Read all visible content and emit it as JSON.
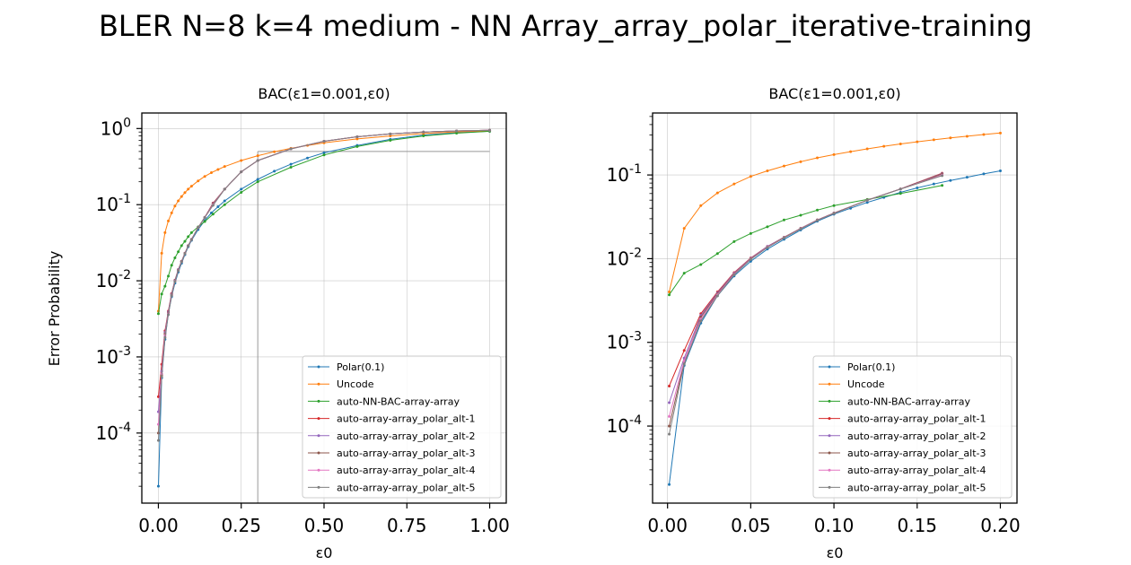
{
  "figure": {
    "title": "BLER N=8 k=4 medium - NN Array_array_polar_iterative-training"
  },
  "colors": {
    "Polar(0.1)": "#1f77b4",
    "Uncode": "#ff7f0e",
    "auto-NN-BAC-array-array": "#2ca02c",
    "auto-array-array_polar_alt-1": "#d62728",
    "auto-array-array_polar_alt-2": "#9467bd",
    "auto-array-array_polar_alt-3": "#8c564b",
    "auto-array-array_polar_alt-4": "#e377c2",
    "auto-array-array_polar_alt-5": "#7f7f7f"
  },
  "chart_data": [
    {
      "type": "line",
      "title": "BAC(ε1=0.001,ε0)",
      "xlabel": "ε0",
      "ylabel": "Error Probability",
      "yscale": "log",
      "xlim": [
        -0.05,
        1.05
      ],
      "ylim": [
        1.2e-05,
        1.6
      ],
      "xticks": [
        "0.00",
        "0.25",
        "0.50",
        "0.75",
        "1.00"
      ],
      "yticks": [
        "10^0",
        "10^-1",
        "10^-2",
        "10^-3",
        "10^-4"
      ],
      "grid": true,
      "legend_position": "lower-right",
      "reference_lines": {
        "vertical_x": 0.3,
        "horizontal_y": 0.5
      },
      "series": [
        {
          "name": "Polar(0.1)",
          "x": [
            0,
            0.01,
            0.02,
            0.03,
            0.04,
            0.05,
            0.06,
            0.07,
            0.08,
            0.09,
            0.1,
            0.12,
            0.14,
            0.16,
            0.18,
            0.2,
            0.25,
            0.3,
            0.35,
            0.4,
            0.45,
            0.5,
            0.6,
            0.7,
            0.8,
            0.9,
            1.0
          ],
          "y": [
            2e-05,
            0.00053,
            0.0017,
            0.0036,
            0.0062,
            0.0093,
            0.013,
            0.017,
            0.022,
            0.028,
            0.034,
            0.047,
            0.062,
            0.078,
            0.094,
            0.112,
            0.16,
            0.215,
            0.275,
            0.34,
            0.41,
            0.48,
            0.6,
            0.72,
            0.82,
            0.88,
            0.92
          ]
        },
        {
          "name": "Uncode",
          "x": [
            0,
            0.01,
            0.02,
            0.03,
            0.04,
            0.05,
            0.06,
            0.07,
            0.08,
            0.09,
            0.1,
            0.12,
            0.14,
            0.16,
            0.18,
            0.2,
            0.25,
            0.3,
            0.35,
            0.4,
            0.45,
            0.5,
            0.6,
            0.7,
            0.8,
            0.9,
            1.0
          ],
          "y": [
            0.004,
            0.023,
            0.043,
            0.061,
            0.078,
            0.096,
            0.112,
            0.128,
            0.144,
            0.16,
            0.175,
            0.205,
            0.235,
            0.263,
            0.29,
            0.317,
            0.38,
            0.44,
            0.495,
            0.55,
            0.6,
            0.65,
            0.73,
            0.8,
            0.86,
            0.905,
            0.93
          ]
        },
        {
          "name": "auto-NN-BAC-array-array",
          "x": [
            0,
            0.01,
            0.02,
            0.03,
            0.04,
            0.05,
            0.06,
            0.07,
            0.08,
            0.09,
            0.1,
            0.12,
            0.14,
            0.165,
            0.2,
            0.25,
            0.3,
            0.4,
            0.5,
            0.6,
            0.7,
            0.8,
            0.9,
            1.0
          ],
          "y": [
            0.0037,
            0.0067,
            0.0085,
            0.0115,
            0.016,
            0.02,
            0.024,
            0.029,
            0.033,
            0.038,
            0.043,
            0.051,
            0.06,
            0.075,
            0.1,
            0.145,
            0.2,
            0.31,
            0.45,
            0.58,
            0.7,
            0.8,
            0.87,
            0.92
          ]
        },
        {
          "name": "auto-array-array_polar_alt-1",
          "x": [
            0,
            0.01,
            0.02,
            0.03,
            0.04,
            0.05,
            0.06,
            0.07,
            0.08,
            0.09,
            0.1,
            0.12,
            0.14,
            0.165,
            0.2,
            0.25,
            0.3,
            0.4,
            0.5,
            0.6,
            0.7,
            0.8,
            0.9,
            1.0
          ],
          "y": [
            0.0003,
            0.0008,
            0.0022,
            0.004,
            0.0068,
            0.0102,
            0.014,
            0.018,
            0.023,
            0.029,
            0.035,
            0.05,
            0.068,
            0.105,
            0.16,
            0.27,
            0.38,
            0.54,
            0.68,
            0.78,
            0.85,
            0.9,
            0.93,
            0.95
          ]
        },
        {
          "name": "auto-array-array_polar_alt-2",
          "x": [
            0,
            0.01,
            0.02,
            0.03,
            0.04,
            0.05,
            0.06,
            0.07,
            0.08,
            0.09,
            0.1,
            0.12,
            0.14,
            0.165,
            0.2,
            0.25,
            0.3,
            0.4,
            0.5,
            0.6,
            0.7,
            0.8,
            0.9,
            1.0
          ],
          "y": [
            0.00019,
            0.00065,
            0.0021,
            0.0039,
            0.0067,
            0.0101,
            0.014,
            0.018,
            0.023,
            0.029,
            0.035,
            0.05,
            0.068,
            0.104,
            0.16,
            0.27,
            0.38,
            0.54,
            0.68,
            0.78,
            0.85,
            0.9,
            0.93,
            0.95
          ]
        },
        {
          "name": "auto-array-array_polar_alt-3",
          "x": [
            0,
            0.01,
            0.02,
            0.03,
            0.04,
            0.05,
            0.06,
            0.07,
            0.08,
            0.09,
            0.1,
            0.12,
            0.14,
            0.165,
            0.2,
            0.25,
            0.3,
            0.4,
            0.5,
            0.6,
            0.7,
            0.8,
            0.9,
            1.0
          ],
          "y": [
            0.0001,
            0.00058,
            0.002,
            0.0038,
            0.0066,
            0.01,
            0.0138,
            0.018,
            0.023,
            0.029,
            0.035,
            0.05,
            0.068,
            0.103,
            0.16,
            0.27,
            0.38,
            0.54,
            0.68,
            0.78,
            0.85,
            0.9,
            0.93,
            0.95
          ]
        },
        {
          "name": "auto-array-array_polar_alt-4",
          "x": [
            0,
            0.01,
            0.02,
            0.03,
            0.04,
            0.05,
            0.06,
            0.07,
            0.08,
            0.09,
            0.1,
            0.12,
            0.14,
            0.165,
            0.2,
            0.25,
            0.3,
            0.4,
            0.5,
            0.6,
            0.7,
            0.8,
            0.9,
            1.0
          ],
          "y": [
            0.00013,
            0.0006,
            0.0019,
            0.0037,
            0.0065,
            0.0099,
            0.0137,
            0.0178,
            0.0228,
            0.0288,
            0.0348,
            0.0498,
            0.0678,
            0.1,
            0.16,
            0.27,
            0.38,
            0.54,
            0.68,
            0.78,
            0.85,
            0.9,
            0.93,
            0.95
          ]
        },
        {
          "name": "auto-array-array_polar_alt-5",
          "x": [
            0,
            0.01,
            0.02,
            0.03,
            0.04,
            0.05,
            0.06,
            0.07,
            0.08,
            0.09,
            0.1,
            0.12,
            0.14,
            0.165,
            0.2,
            0.25,
            0.3,
            0.4,
            0.5,
            0.6,
            0.7,
            0.8,
            0.9,
            1.0
          ],
          "y": [
            8e-05,
            0.00055,
            0.0018,
            0.0036,
            0.0064,
            0.0098,
            0.0136,
            0.0177,
            0.0227,
            0.0287,
            0.0347,
            0.0497,
            0.0677,
            0.098,
            0.16,
            0.27,
            0.38,
            0.54,
            0.68,
            0.78,
            0.85,
            0.9,
            0.93,
            0.95
          ]
        }
      ]
    },
    {
      "type": "line",
      "title": "BAC(ε1=0.001,ε0)",
      "xlabel": "ε0",
      "ylabel": "",
      "yscale": "log",
      "xlim": [
        -0.009,
        0.21
      ],
      "ylim": [
        1.2e-05,
        0.55
      ],
      "xticks": [
        "0.00",
        "0.05",
        "0.10",
        "0.15",
        "0.20"
      ],
      "yticks": [
        "10^-1",
        "10^-2",
        "10^-3",
        "10^-4"
      ],
      "grid": true,
      "legend_position": "lower-right",
      "series": [
        {
          "name": "Polar(0.1)",
          "x": [
            0.001,
            0.01,
            0.02,
            0.03,
            0.04,
            0.05,
            0.06,
            0.07,
            0.08,
            0.09,
            0.1,
            0.11,
            0.12,
            0.13,
            0.14,
            0.15,
            0.16,
            0.17,
            0.18,
            0.19,
            0.2
          ],
          "y": [
            2e-05,
            0.00053,
            0.0017,
            0.0036,
            0.0062,
            0.0093,
            0.013,
            0.017,
            0.022,
            0.028,
            0.034,
            0.04,
            0.047,
            0.054,
            0.062,
            0.07,
            0.078,
            0.086,
            0.094,
            0.103,
            0.112
          ]
        },
        {
          "name": "Uncode",
          "x": [
            0.001,
            0.01,
            0.02,
            0.03,
            0.04,
            0.05,
            0.06,
            0.07,
            0.08,
            0.09,
            0.1,
            0.11,
            0.12,
            0.13,
            0.14,
            0.15,
            0.16,
            0.17,
            0.18,
            0.19,
            0.2
          ],
          "y": [
            0.004,
            0.023,
            0.043,
            0.061,
            0.078,
            0.096,
            0.112,
            0.128,
            0.144,
            0.16,
            0.175,
            0.19,
            0.205,
            0.22,
            0.235,
            0.249,
            0.263,
            0.277,
            0.29,
            0.304,
            0.317
          ]
        },
        {
          "name": "auto-NN-BAC-array-array",
          "x": [
            0.001,
            0.01,
            0.02,
            0.03,
            0.04,
            0.05,
            0.06,
            0.07,
            0.08,
            0.09,
            0.1,
            0.12,
            0.14,
            0.165
          ],
          "y": [
            0.0037,
            0.0067,
            0.0085,
            0.0115,
            0.016,
            0.02,
            0.024,
            0.029,
            0.033,
            0.038,
            0.043,
            0.051,
            0.06,
            0.075
          ]
        },
        {
          "name": "auto-array-array_polar_alt-1",
          "x": [
            0.001,
            0.01,
            0.02,
            0.03,
            0.04,
            0.05,
            0.06,
            0.07,
            0.08,
            0.09,
            0.1,
            0.12,
            0.14,
            0.165
          ],
          "y": [
            0.0003,
            0.0008,
            0.0022,
            0.004,
            0.0068,
            0.0102,
            0.014,
            0.018,
            0.023,
            0.029,
            0.035,
            0.05,
            0.068,
            0.105
          ]
        },
        {
          "name": "auto-array-array_polar_alt-2",
          "x": [
            0.001,
            0.01,
            0.02,
            0.03,
            0.04,
            0.05,
            0.06,
            0.07,
            0.08,
            0.09,
            0.1,
            0.12,
            0.14,
            0.165
          ],
          "y": [
            0.00019,
            0.00065,
            0.0021,
            0.0039,
            0.0067,
            0.0101,
            0.014,
            0.018,
            0.023,
            0.029,
            0.035,
            0.05,
            0.068,
            0.104
          ]
        },
        {
          "name": "auto-array-array_polar_alt-3",
          "x": [
            0.001,
            0.01,
            0.02,
            0.03,
            0.04,
            0.05,
            0.06,
            0.07,
            0.08,
            0.09,
            0.1,
            0.12,
            0.14,
            0.165
          ],
          "y": [
            0.0001,
            0.00058,
            0.002,
            0.0038,
            0.0066,
            0.01,
            0.0138,
            0.018,
            0.023,
            0.029,
            0.035,
            0.05,
            0.068,
            0.103
          ]
        },
        {
          "name": "auto-array-array_polar_alt-4",
          "x": [
            0.001,
            0.01,
            0.02,
            0.03,
            0.04,
            0.05,
            0.06,
            0.07,
            0.08,
            0.09,
            0.1,
            0.12,
            0.14,
            0.165
          ],
          "y": [
            0.00013,
            0.0006,
            0.0019,
            0.0037,
            0.0065,
            0.0099,
            0.0137,
            0.0178,
            0.0228,
            0.0288,
            0.0348,
            0.0498,
            0.0678,
            0.1
          ]
        },
        {
          "name": "auto-array-array_polar_alt-5",
          "x": [
            0.001,
            0.01,
            0.02,
            0.03,
            0.04,
            0.05,
            0.06,
            0.07,
            0.08,
            0.09,
            0.1,
            0.12,
            0.14,
            0.165
          ],
          "y": [
            8e-05,
            0.00055,
            0.0018,
            0.0036,
            0.0064,
            0.0098,
            0.0136,
            0.0177,
            0.0227,
            0.0287,
            0.0347,
            0.0497,
            0.0677,
            0.098
          ]
        }
      ]
    }
  ]
}
